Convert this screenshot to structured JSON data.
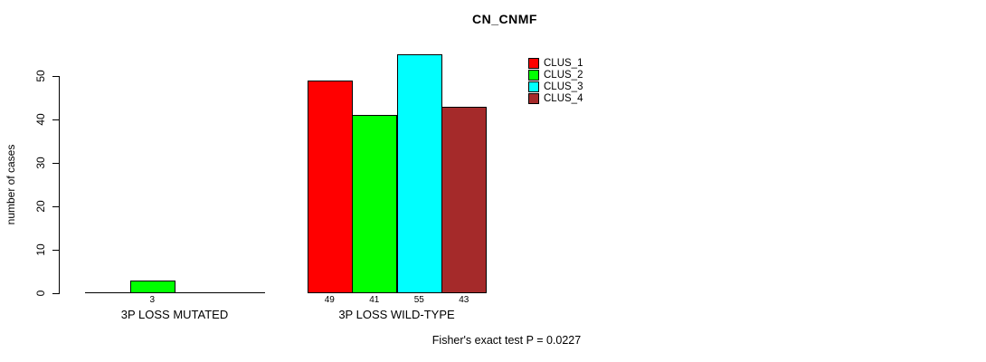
{
  "chart_data": {
    "type": "bar",
    "title": "CN_CNMF",
    "ylabel": "number of cases",
    "xlabel": "",
    "ylim": [
      0,
      55
    ],
    "yticks": [
      0,
      10,
      20,
      30,
      40,
      50
    ],
    "categories": [
      "3P LOSS MUTATED",
      "3P LOSS WILD-TYPE"
    ],
    "series": [
      {
        "name": "CLUS_1",
        "color": "#FF0000",
        "values": [
          0,
          49
        ]
      },
      {
        "name": "CLUS_2",
        "color": "#00FF00",
        "values": [
          3,
          41
        ]
      },
      {
        "name": "CLUS_3",
        "color": "#00FFFF",
        "values": [
          0,
          55
        ]
      },
      {
        "name": "CLUS_4",
        "color": "#A52A2A",
        "values": [
          0,
          43
        ]
      }
    ],
    "bar_value_labels": {
      "3P LOSS MUTATED": [
        "",
        "3",
        "",
        ""
      ],
      "3P LOSS WILD-TYPE": [
        "49",
        "41",
        "55",
        "43"
      ]
    },
    "legend_position": "top-right",
    "grid": false,
    "annotation": "Fisher's exact test P = 0.0227"
  }
}
